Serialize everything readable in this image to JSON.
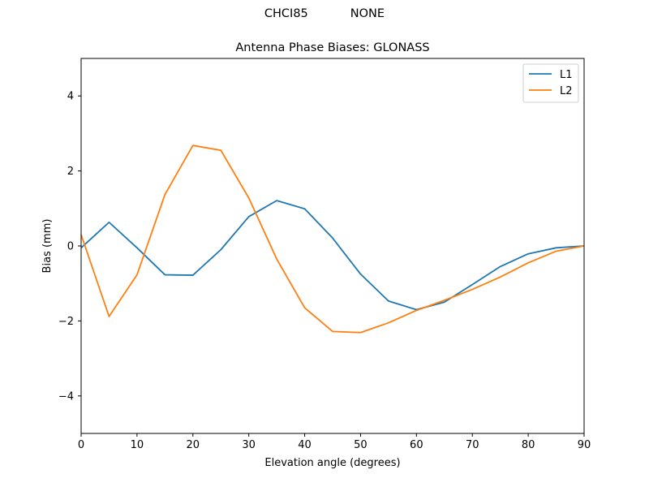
{
  "figure": {
    "suptitle_left": "CHCI85",
    "suptitle_right": "NONE"
  },
  "chart_data": {
    "type": "line",
    "title": "Antenna Phase Biases: GLONASS",
    "xlabel": "Elevation angle (degrees)",
    "ylabel": "Bias (mm)",
    "xlim": [
      0,
      90
    ],
    "ylim": [
      -5,
      5
    ],
    "xticks": [
      0,
      10,
      20,
      30,
      40,
      50,
      60,
      70,
      80,
      90
    ],
    "yticks": [
      -4,
      -2,
      0,
      2,
      4
    ],
    "ytick_labels": [
      "−4",
      "−2",
      "0",
      "2",
      "4"
    ],
    "grid": false,
    "legend_position": "upper right",
    "x": [
      0,
      5,
      10,
      15,
      20,
      25,
      30,
      35,
      40,
      45,
      50,
      55,
      60,
      65,
      70,
      75,
      80,
      85,
      90
    ],
    "series": [
      {
        "name": "L1",
        "color": "#1f77b4",
        "values": [
          -0.05,
          0.63,
          -0.05,
          -0.77,
          -0.78,
          -0.1,
          0.78,
          1.21,
          0.99,
          0.21,
          -0.75,
          -1.47,
          -1.7,
          -1.5,
          -1.03,
          -0.55,
          -0.21,
          -0.05,
          0.0
        ]
      },
      {
        "name": "L2",
        "color": "#ff7f0e",
        "values": [
          0.3,
          -1.88,
          -0.77,
          1.37,
          2.68,
          2.55,
          1.28,
          -0.35,
          -1.65,
          -2.28,
          -2.31,
          -2.05,
          -1.72,
          -1.45,
          -1.16,
          -0.83,
          -0.45,
          -0.14,
          0.0
        ]
      }
    ]
  }
}
